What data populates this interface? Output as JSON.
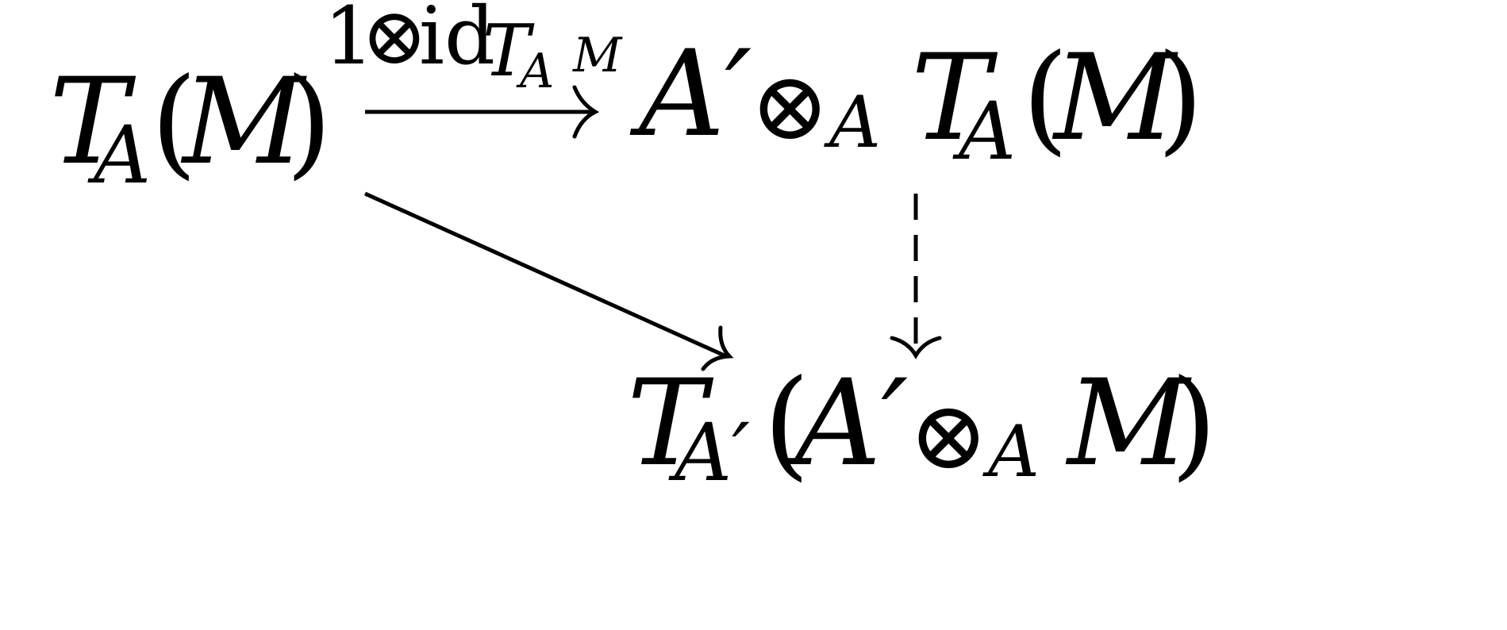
{
  "diagram": {
    "nodes": {
      "source": {
        "functor": "T",
        "functor_sub": "A",
        "open": "(",
        "arg": "M",
        "close": ")"
      },
      "target_top": {
        "left": "A′",
        "op": "⊗",
        "op_sub": "A",
        "functor": "T",
        "functor_sub": "A",
        "open": "(",
        "arg": "M",
        "close": ")"
      },
      "target_bottom": {
        "functor": "T",
        "functor_sub": "A′",
        "open": "(",
        "left": "A′",
        "op": "⊗",
        "op_sub": "A",
        "arg": "M",
        "close": ")"
      }
    },
    "arrows": {
      "top": {
        "label_one": "1",
        "label_op": "⊗",
        "label_id": "id",
        "label_functor": "T",
        "label_sub": "A",
        "label_sup": "M",
        "style": "solid"
      },
      "diagonal": {
        "style": "solid"
      },
      "vertical": {
        "style": "dashed"
      }
    },
    "colors": {
      "ink": "#000000",
      "background": "#ffffff"
    }
  }
}
